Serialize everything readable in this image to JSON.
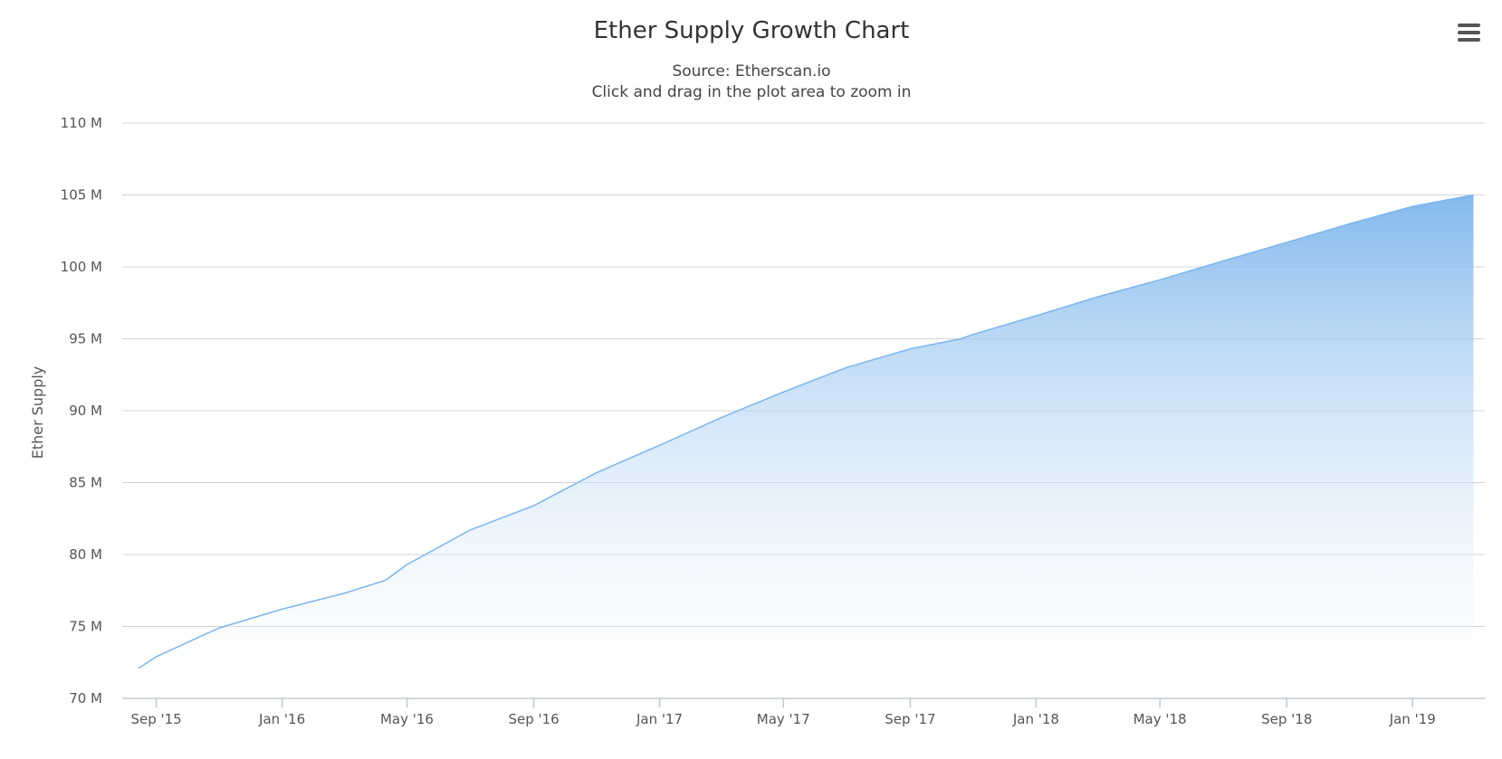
{
  "header": {
    "title": "Ether Supply Growth Chart",
    "subtitle_line1": "Source: Etherscan.io",
    "subtitle_line2": "Click and drag in the plot area to zoom in"
  },
  "menu": {
    "icon": "hamburger-menu-icon"
  },
  "colors": {
    "series_line": "#7cb5ec",
    "series_fill_top": "#7cb5ec",
    "series_fill_bottom": "#ffffff",
    "grid": "#d0d4d8"
  },
  "chart_data": {
    "type": "area",
    "title": "Ether Supply Growth Chart",
    "subtitle": "Source: Etherscan.io",
    "xlabel": "",
    "ylabel": "Ether Supply",
    "xlim": [
      "2015-07-30",
      "2019-03-12"
    ],
    "ylim": [
      70000000,
      110000000
    ],
    "grid": true,
    "legend": "none",
    "x_ticks": [
      {
        "date": "2015-09-01",
        "label": "Sep '15"
      },
      {
        "date": "2016-01-01",
        "label": "Jan '16"
      },
      {
        "date": "2016-05-01",
        "label": "May '16"
      },
      {
        "date": "2016-09-01",
        "label": "Sep '16"
      },
      {
        "date": "2017-01-01",
        "label": "Jan '17"
      },
      {
        "date": "2017-05-01",
        "label": "May '17"
      },
      {
        "date": "2017-09-01",
        "label": "Sep '17"
      },
      {
        "date": "2018-01-01",
        "label": "Jan '18"
      },
      {
        "date": "2018-05-01",
        "label": "May '18"
      },
      {
        "date": "2018-09-01",
        "label": "Sep '18"
      },
      {
        "date": "2019-01-01",
        "label": "Jan '19"
      }
    ],
    "y_ticks": [
      {
        "value": 70000000,
        "label": "70 M"
      },
      {
        "value": 75000000,
        "label": "75 M"
      },
      {
        "value": 80000000,
        "label": "80 M"
      },
      {
        "value": 85000000,
        "label": "85 M"
      },
      {
        "value": 90000000,
        "label": "90 M"
      },
      {
        "value": 95000000,
        "label": "95 M"
      },
      {
        "value": 100000000,
        "label": "100 M"
      },
      {
        "value": 105000000,
        "label": "105 M"
      },
      {
        "value": 110000000,
        "label": "110 M"
      }
    ],
    "series": [
      {
        "points": [
          {
            "x": "2015-08-15",
            "y": 72100000
          },
          {
            "x": "2015-09-01",
            "y": 72900000
          },
          {
            "x": "2015-11-01",
            "y": 74900000
          },
          {
            "x": "2016-01-01",
            "y": 76200000
          },
          {
            "x": "2016-03-01",
            "y": 77300000
          },
          {
            "x": "2016-04-10",
            "y": 78200000
          },
          {
            "x": "2016-05-01",
            "y": 79300000
          },
          {
            "x": "2016-07-01",
            "y": 81700000
          },
          {
            "x": "2016-09-01",
            "y": 83400000
          },
          {
            "x": "2016-11-01",
            "y": 85700000
          },
          {
            "x": "2017-01-01",
            "y": 87600000
          },
          {
            "x": "2017-03-01",
            "y": 89500000
          },
          {
            "x": "2017-05-01",
            "y": 91300000
          },
          {
            "x": "2017-07-01",
            "y": 93000000
          },
          {
            "x": "2017-09-01",
            "y": 94300000
          },
          {
            "x": "2017-10-20",
            "y": 95000000
          },
          {
            "x": "2017-11-01",
            "y": 95300000
          },
          {
            "x": "2018-01-01",
            "y": 96600000
          },
          {
            "x": "2018-03-01",
            "y": 97900000
          },
          {
            "x": "2018-05-01",
            "y": 99100000
          },
          {
            "x": "2018-07-01",
            "y": 100400000
          },
          {
            "x": "2018-09-01",
            "y": 101700000
          },
          {
            "x": "2018-11-01",
            "y": 103000000
          },
          {
            "x": "2019-01-01",
            "y": 104200000
          },
          {
            "x": "2019-03-01",
            "y": 105000000
          }
        ]
      }
    ]
  }
}
